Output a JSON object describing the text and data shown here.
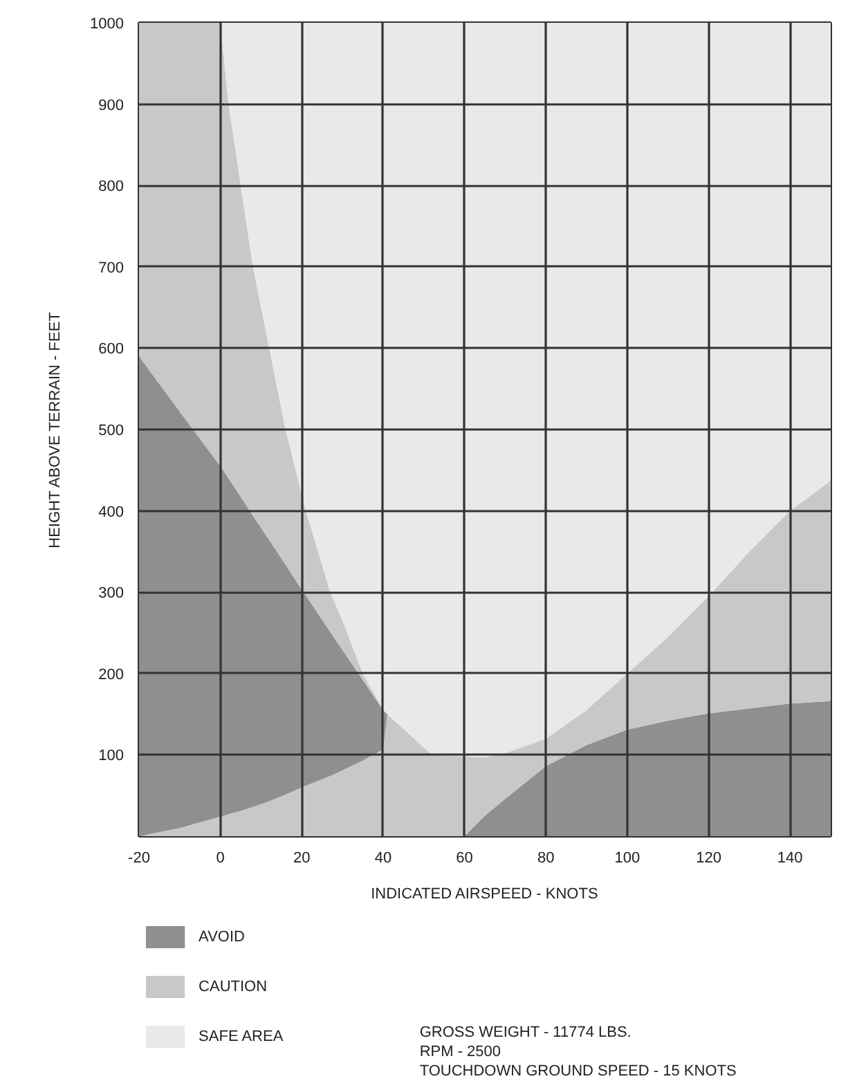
{
  "chart_data": {
    "type": "area",
    "stacked": true,
    "xlabel": "INDICATED AIRSPEED - KNOTS",
    "ylabel": "HEIGHT ABOVE TERRAIN - FEET",
    "x": [
      -20,
      -10,
      0,
      2,
      5,
      8,
      12,
      16,
      20,
      21,
      27,
      30,
      35,
      40,
      41,
      52,
      60,
      65,
      70,
      80,
      90,
      100,
      110,
      120,
      130,
      140,
      150
    ],
    "series": [
      {
        "name": "AVOID",
        "color": "#8f8f8f",
        "values": [
          null,
          null,
          null,
          null,
          null,
          null,
          null,
          null,
          null,
          null,
          null,
          null,
          null,
          null,
          null,
          null,
          0,
          25,
          46,
          86,
          112,
          131,
          142,
          151,
          157,
          163,
          166
        ]
      },
      {
        "name": "CAUTION",
        "color": "#c8c8c8",
        "values": [
          0,
          10,
          24,
          27,
          31,
          36,
          43,
          51,
          60,
          62,
          74,
          81,
          93,
          107,
          150,
          100,
          98,
          72,
          56,
          34,
          43,
          69,
          103,
          144,
          193,
          237,
          271
        ]
      },
      {
        "color": "#8f8f8f",
        "values": [
          590,
          512,
          431,
          413,
          386,
          358,
          321,
          283,
          243,
          234,
          177,
          148,
          99,
          48,
          0,
          null,
          null,
          null,
          null,
          null,
          null,
          null,
          null,
          null,
          null,
          null,
          null
        ]
      },
      {
        "color": "#c8c8c8",
        "values": [
          410,
          478,
          545,
          460,
          383,
          306,
          236,
          166,
          117,
          104,
          49,
          36,
          8,
          0,
          null,
          null,
          null,
          null,
          null,
          null,
          null,
          null,
          null,
          null,
          null,
          null,
          null
        ]
      },
      {
        "name": "SAFE AREA",
        "color": "#e9e9e9",
        "values": [
          null,
          null,
          0,
          100,
          200,
          300,
          400,
          500,
          580,
          600,
          700,
          735,
          800,
          845,
          850,
          900,
          902,
          903,
          898,
          880,
          845,
          800,
          755,
          705,
          650,
          600,
          563
        ]
      }
    ],
    "xlim": [
      -20,
      150
    ],
    "ylim": [
      0,
      1000
    ],
    "xticks": [
      -20,
      0,
      20,
      40,
      60,
      80,
      100,
      120,
      140
    ],
    "yticks": [
      {
        "value": 0,
        "label": null
      },
      100,
      200,
      300,
      400,
      500,
      600,
      700,
      800,
      900,
      1000
    ],
    "grid": true,
    "legend": "bottom left",
    "annotations": [
      "GROSS WEIGHT - 11774 LBS.",
      "RPM - 2500",
      "TOUCHDOWN GROUND SPEED - 15 KNOTS"
    ]
  }
}
